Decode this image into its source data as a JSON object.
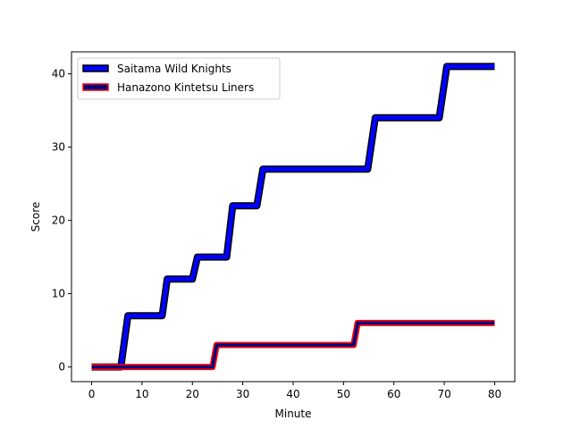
{
  "chart_data": {
    "type": "line",
    "title": "",
    "xlabel": "Minute",
    "ylabel": "Score",
    "xlim": [
      -4,
      84
    ],
    "ylim": [
      -2,
      43
    ],
    "xticks": [
      0,
      10,
      20,
      30,
      40,
      50,
      60,
      70,
      80
    ],
    "yticks": [
      0,
      10,
      20,
      30,
      40
    ],
    "grid": false,
    "legend_position": "top-left",
    "series": [
      {
        "name": "Saitama Wild Knights",
        "fill_color": "#0000ff",
        "edge_color": "#000000",
        "points": [
          [
            0,
            0
          ],
          [
            5.8,
            0
          ],
          [
            7.2,
            7
          ],
          [
            14,
            7
          ],
          [
            15,
            12
          ],
          [
            20,
            12
          ],
          [
            21,
            15
          ],
          [
            26.8,
            15
          ],
          [
            28,
            22
          ],
          [
            32.8,
            22
          ],
          [
            34,
            27
          ],
          [
            54.8,
            27
          ],
          [
            56.3,
            34
          ],
          [
            69,
            34
          ],
          [
            70.5,
            41
          ],
          [
            80,
            41
          ]
        ]
      },
      {
        "name": "Hanazono Kintetsu Liners",
        "fill_color": "#000080",
        "edge_color": "#ff0000",
        "points": [
          [
            0,
            0
          ],
          [
            24,
            0
          ],
          [
            24.8,
            3
          ],
          [
            52,
            3
          ],
          [
            52.8,
            6
          ],
          [
            80,
            6
          ]
        ]
      }
    ]
  }
}
